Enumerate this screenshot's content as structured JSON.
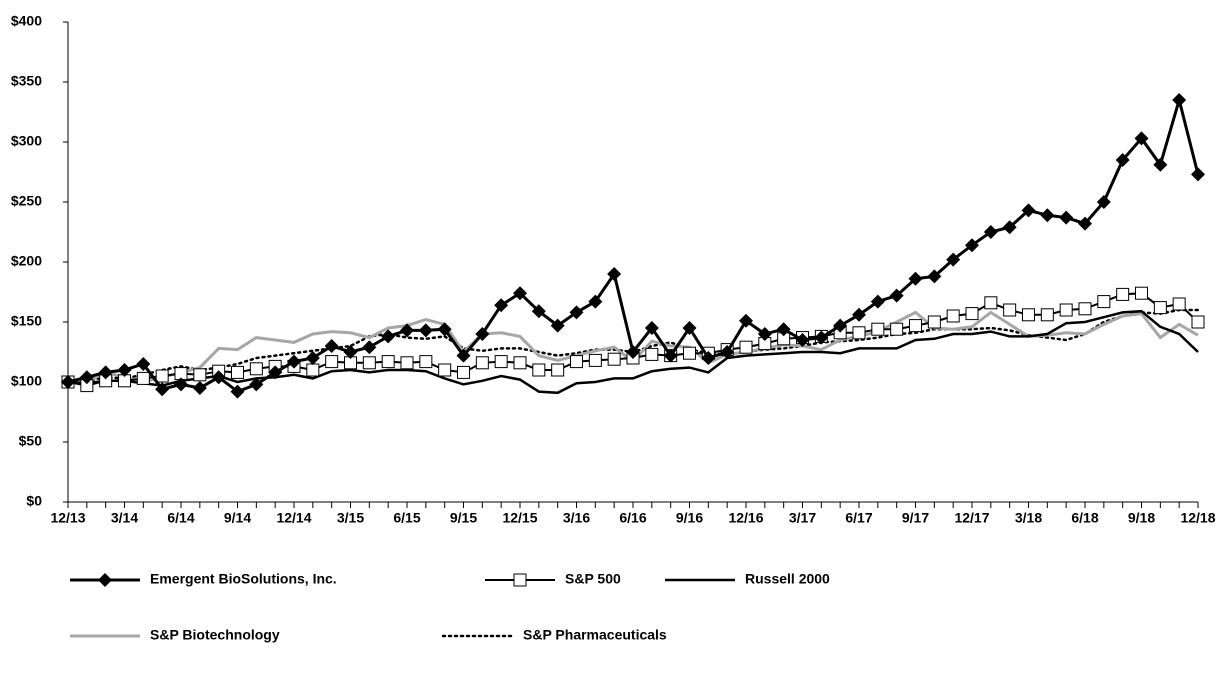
{
  "chart_data": {
    "type": "line",
    "categories": [
      "12/13",
      null,
      null,
      "3/14",
      null,
      null,
      "6/14",
      null,
      null,
      "9/14",
      null,
      null,
      "12/14",
      null,
      null,
      "3/15",
      null,
      null,
      "6/15",
      null,
      null,
      "9/15",
      null,
      null,
      "12/15",
      null,
      null,
      "3/16",
      null,
      null,
      "6/16",
      null,
      null,
      "9/16",
      null,
      null,
      "12/16",
      null,
      null,
      "3/17",
      null,
      null,
      "6/17",
      null,
      null,
      "9/17",
      null,
      null,
      "12/17",
      null,
      null,
      "3/18",
      null,
      null,
      "6/18",
      null,
      null,
      "9/18",
      null,
      null,
      "12/18"
    ],
    "ylim": [
      0,
      400
    ],
    "yticks": [
      {
        "value": 0,
        "label": "$0"
      },
      {
        "value": 50,
        "label": "$50"
      },
      {
        "value": 100,
        "label": "$100"
      },
      {
        "value": 150,
        "label": "$150"
      },
      {
        "value": 200,
        "label": "$200"
      },
      {
        "value": 250,
        "label": "$250"
      },
      {
        "value": 300,
        "label": "$300"
      },
      {
        "value": 350,
        "label": "$350"
      },
      {
        "value": 400,
        "label": "$400"
      }
    ],
    "series": [
      {
        "name": "Emergent BioSolutions, Inc.",
        "color": "#000000",
        "marker": "diamond",
        "dash": "solid",
        "values": [
          100,
          104,
          108,
          110,
          115,
          94,
          98,
          95,
          104,
          92,
          98,
          108,
          117,
          120,
          130,
          125,
          129,
          138,
          143,
          143,
          144,
          122,
          140,
          164,
          174,
          159,
          147,
          158,
          167,
          190,
          125,
          145,
          122,
          145,
          120,
          125,
          151,
          140,
          144,
          135,
          137,
          147,
          156,
          167,
          172,
          186,
          188,
          202,
          214,
          225,
          229,
          243,
          239,
          237,
          232,
          250,
          285,
          303,
          281,
          335,
          273
        ]
      },
      {
        "name": "S&P 500",
        "color": "#000000",
        "marker": "square",
        "dash": "solid",
        "values": [
          100,
          97,
          101,
          101,
          103,
          105,
          107,
          106,
          109,
          108,
          111,
          113,
          113,
          110,
          117,
          116,
          116,
          117,
          116,
          117,
          110,
          108,
          116,
          117,
          116,
          110,
          110,
          117,
          118,
          119,
          120,
          123,
          122,
          124,
          124,
          127,
          129,
          132,
          136,
          137,
          138,
          141,
          141,
          144,
          144,
          147,
          150,
          155,
          157,
          166,
          160,
          156,
          156,
          160,
          161,
          167,
          173,
          174,
          162,
          165,
          150
        ]
      },
      {
        "name": "Russell 2000",
        "color": "#000000",
        "marker": "none",
        "dash": "solid",
        "values": [
          100,
          99,
          101,
          101,
          99,
          97,
          101,
          103,
          105,
          100,
          103,
          104,
          106,
          103,
          109,
          110,
          108,
          110,
          110,
          109,
          103,
          98,
          101,
          105,
          102,
          92,
          91,
          99,
          100,
          103,
          103,
          109,
          111,
          112,
          108,
          120,
          122,
          123,
          124,
          125,
          125,
          124,
          128,
          128,
          128,
          135,
          136,
          140,
          140,
          142,
          138,
          138,
          140,
          149,
          150,
          154,
          158,
          159,
          146,
          140,
          125
        ]
      },
      {
        "name": "S&P Biotechnology",
        "color": "#a6a6a6",
        "marker": "none",
        "dash": "solid",
        "values": [
          100,
          100,
          108,
          104,
          100,
          104,
          108,
          112,
          128,
          127,
          137,
          135,
          133,
          140,
          142,
          141,
          137,
          145,
          147,
          152,
          148,
          125,
          140,
          141,
          138,
          122,
          118,
          122,
          126,
          129,
          117,
          134,
          130,
          129,
          116,
          123,
          125,
          128,
          131,
          130,
          127,
          135,
          138,
          142,
          150,
          158,
          145,
          144,
          146,
          158,
          148,
          138,
          139,
          141,
          140,
          148,
          155,
          157,
          137,
          148,
          139
        ]
      },
      {
        "name": "S&P Pharmaceuticals",
        "color": "#000000",
        "marker": "none",
        "dash": "dotted",
        "values": [
          100,
          101,
          104,
          103,
          106,
          110,
          113,
          110,
          112,
          115,
          120,
          122,
          124,
          126,
          128,
          130,
          138,
          140,
          137,
          136,
          138,
          128,
          126,
          128,
          128,
          125,
          122,
          124,
          127,
          127,
          125,
          130,
          133,
          127,
          124,
          123,
          125,
          127,
          128,
          130,
          133,
          134,
          135,
          137,
          140,
          141,
          144,
          144,
          144,
          145,
          143,
          139,
          137,
          135,
          140,
          150,
          155,
          158,
          157,
          160,
          160
        ]
      }
    ]
  }
}
